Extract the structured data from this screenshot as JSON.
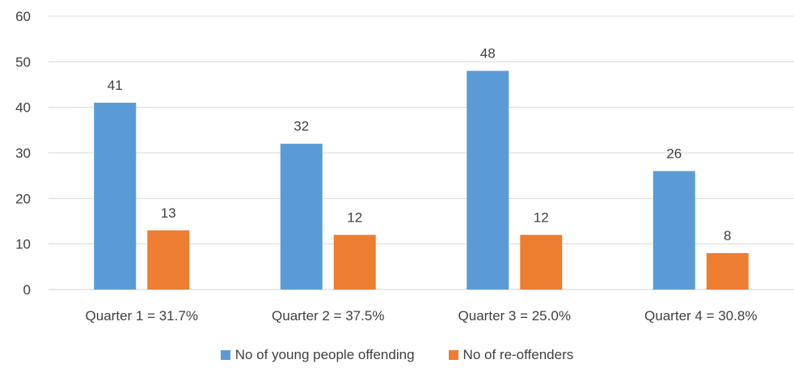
{
  "chart_data": {
    "type": "bar",
    "categories": [
      "Quarter 1 = 31.7%",
      "Quarter 2 = 37.5%",
      "Quarter 3 = 25.0%",
      "Quarter 4 = 30.8%"
    ],
    "series": [
      {
        "name": "No of young people offending",
        "values": [
          41,
          32,
          48,
          26
        ],
        "color": "#5B9BD5"
      },
      {
        "name": "No of re-offenders",
        "values": [
          13,
          12,
          12,
          8
        ],
        "color": "#ED7D31"
      }
    ],
    "ylim": [
      0,
      60
    ],
    "yticks": [
      0,
      10,
      20,
      30,
      40,
      50,
      60
    ],
    "grid": true,
    "legend_position": "bottom",
    "data_labels": true,
    "title": "",
    "xlabel": "",
    "ylabel": ""
  }
}
